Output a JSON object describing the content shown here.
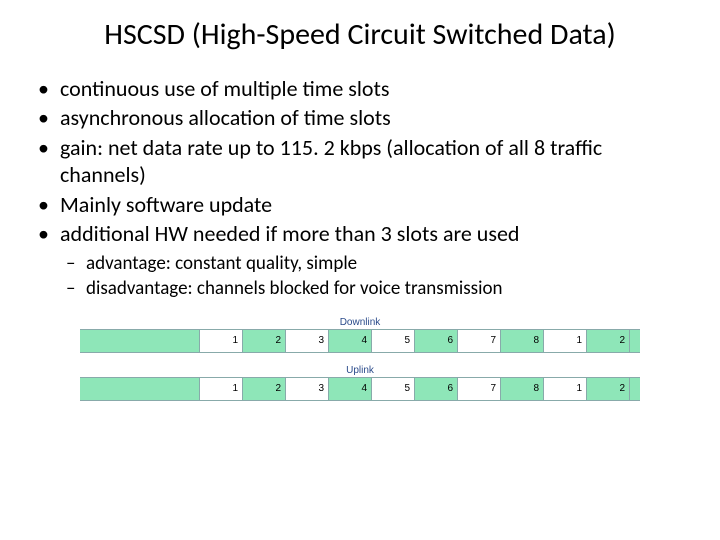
{
  "title": "HSCSD (High-Speed Circuit Switched Data)",
  "bullets": [
    "continuous use of multiple time slots",
    "asynchronous allocation of time slots",
    "gain: net data rate up to 115. 2 kbps (allocation of all 8 traffic channels)",
    "Mainly software update",
    "additional HW needed if more than 3 slots are used"
  ],
  "sub_bullets": [
    "advantage: constant quality, simple",
    "disadvantage: channels blocked for voice transmission"
  ],
  "diagram": {
    "downlink": {
      "label": "Downlink",
      "cells": [
        {
          "n": "1",
          "fill": "w"
        },
        {
          "n": "2",
          "fill": "g"
        },
        {
          "n": "3",
          "fill": "w"
        },
        {
          "n": "4",
          "fill": "g"
        },
        {
          "n": "5",
          "fill": "w"
        },
        {
          "n": "6",
          "fill": "g"
        },
        {
          "n": "7",
          "fill": "w"
        },
        {
          "n": "8",
          "fill": "g"
        },
        {
          "n": "1",
          "fill": "w"
        },
        {
          "n": "2",
          "fill": "g"
        }
      ]
    },
    "uplink": {
      "label": "Uplink",
      "cells": [
        {
          "n": "1",
          "fill": "w"
        },
        {
          "n": "2",
          "fill": "g"
        },
        {
          "n": "3",
          "fill": "w"
        },
        {
          "n": "4",
          "fill": "g"
        },
        {
          "n": "5",
          "fill": "w"
        },
        {
          "n": "6",
          "fill": "g"
        },
        {
          "n": "7",
          "fill": "w"
        },
        {
          "n": "8",
          "fill": "g"
        },
        {
          "n": "1",
          "fill": "w"
        },
        {
          "n": "2",
          "fill": "g"
        }
      ]
    },
    "colors": {
      "fill_green": "#8ee6b8",
      "fill_white": "#ffffff",
      "border": "#88aaaa",
      "label_color": "#2a4a8a"
    }
  }
}
